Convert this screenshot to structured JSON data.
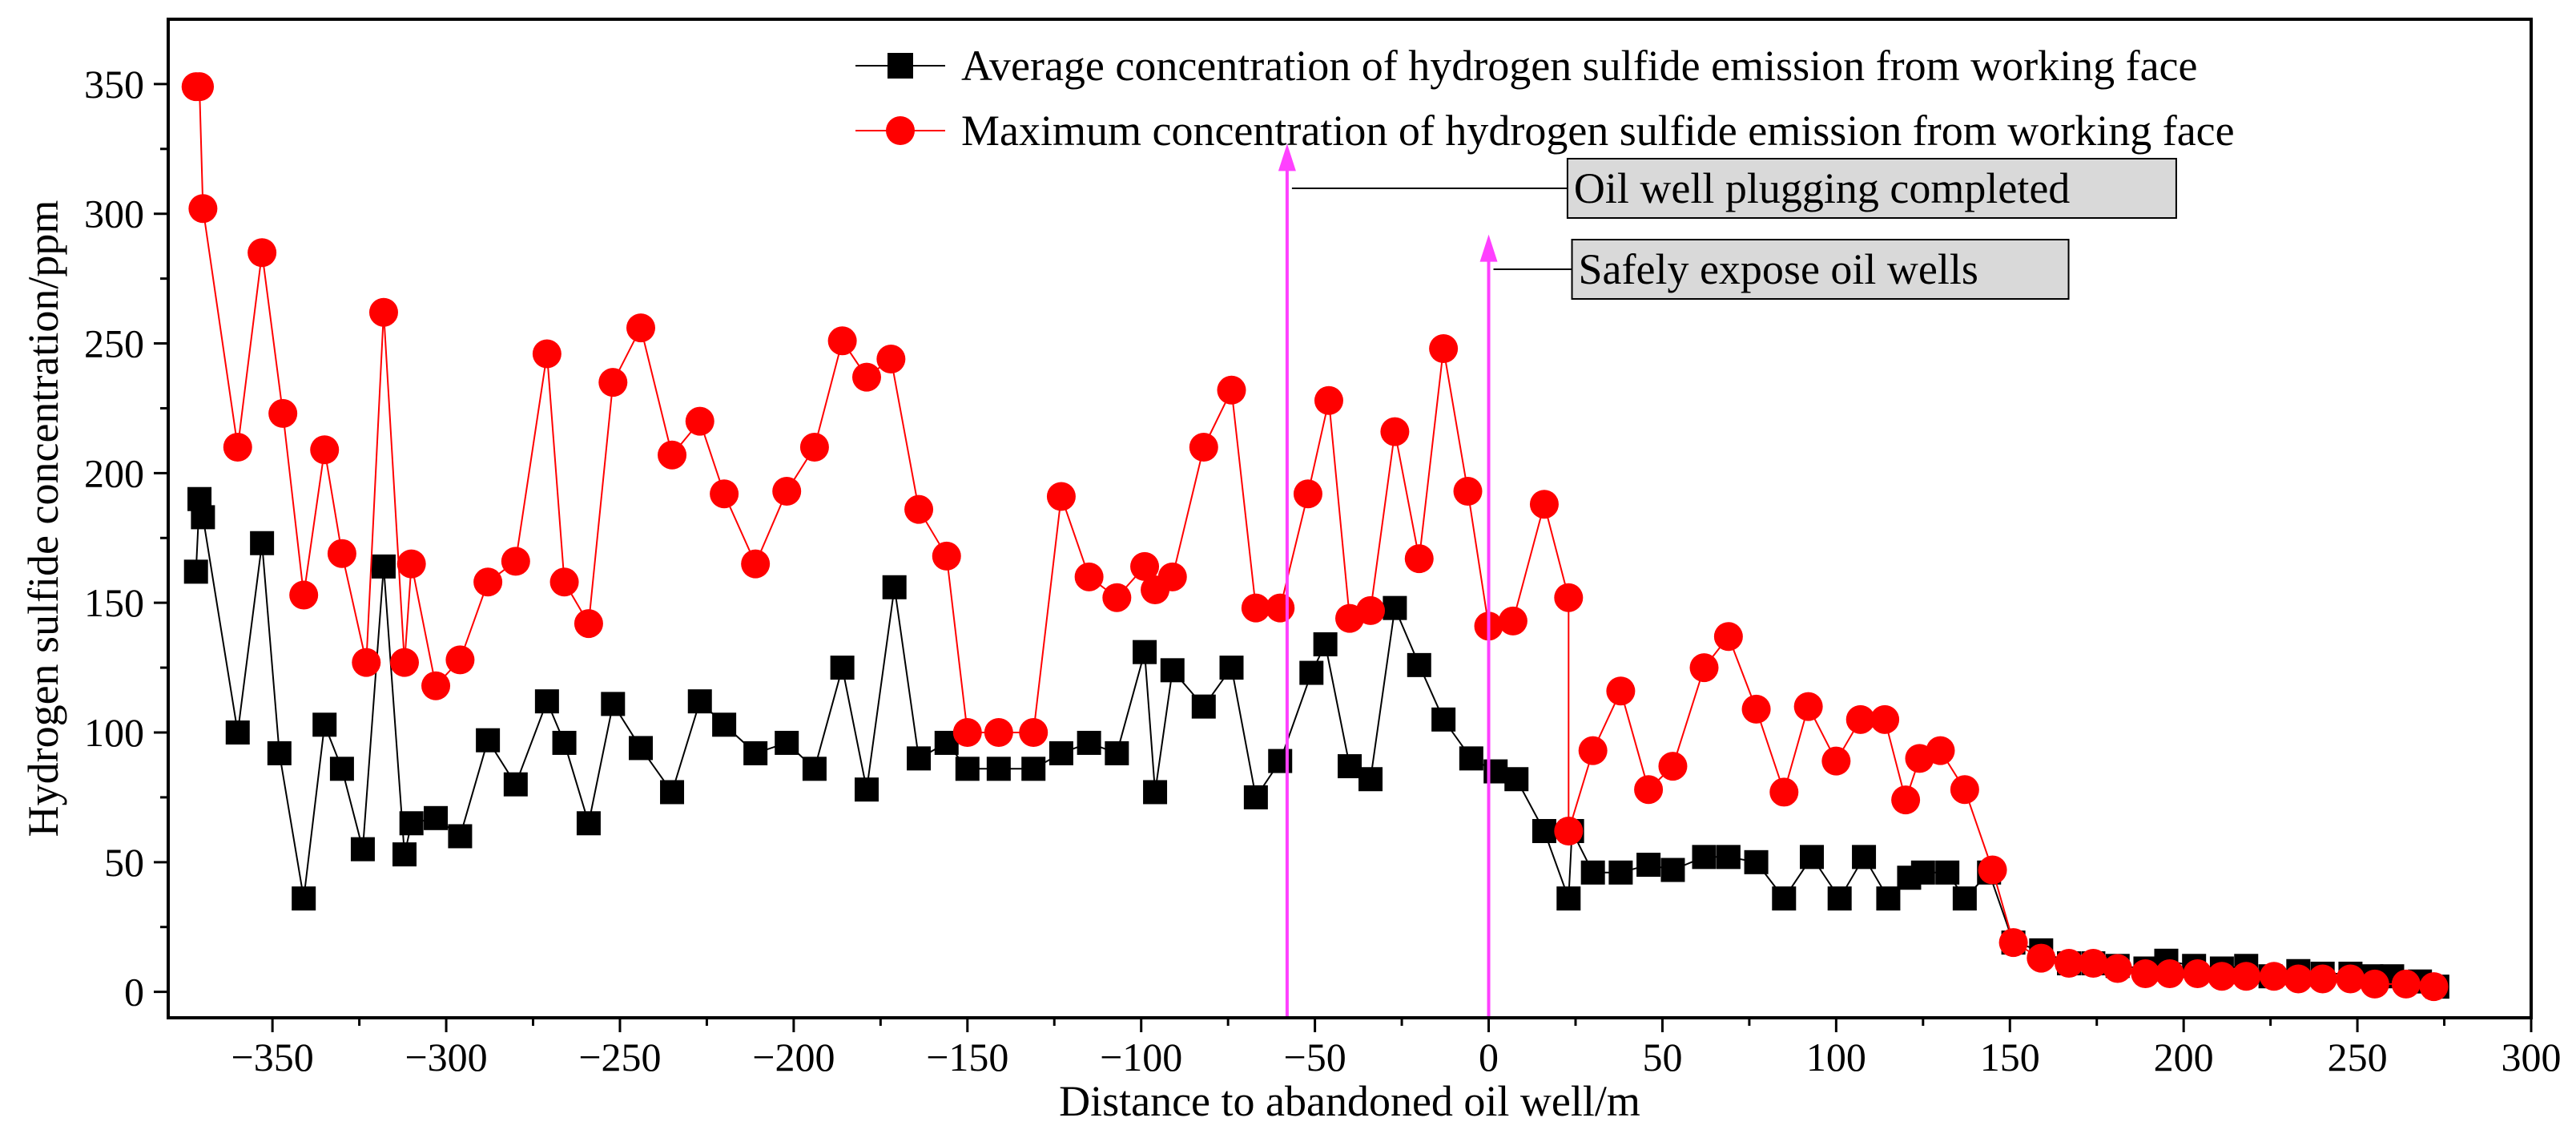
{
  "chart_data": {
    "type": "line",
    "xlabel": "Distance to abandoned oil well/m",
    "ylabel": "Hydrogen sulfide concentration/ppm",
    "xlim": [
      -380,
      300
    ],
    "ylim": [
      -10,
      375
    ],
    "x_ticks": [
      -350,
      -300,
      -250,
      -200,
      -150,
      -100,
      -50,
      0,
      50,
      100,
      150,
      200,
      250,
      300
    ],
    "y_ticks": [
      0,
      50,
      100,
      150,
      200,
      250,
      300,
      350
    ],
    "x_tick_labels": [
      "−350",
      "−300",
      "−250",
      "−200",
      "−150",
      "−100",
      "−50",
      "0",
      "50",
      "100",
      "150",
      "200",
      "250",
      "300"
    ],
    "y_tick_labels": [
      "0",
      "50",
      "100",
      "150",
      "200",
      "250",
      "300",
      "350"
    ],
    "grid": false,
    "legend_position": "top-right",
    "series": [
      {
        "name": "Average concentration of hydrogen sulfide emission from working face",
        "color": "#000000",
        "marker": "square",
        "points": [
          [
            -372,
            162
          ],
          [
            -371,
            190
          ],
          [
            -370,
            183
          ],
          [
            -360,
            100
          ],
          [
            -353,
            173
          ],
          [
            -348,
            92
          ],
          [
            -341,
            36
          ],
          [
            -335,
            103
          ],
          [
            -330,
            86
          ],
          [
            -324,
            55
          ],
          [
            -318,
            164
          ],
          [
            -312,
            53
          ],
          [
            -310,
            65
          ],
          [
            -303,
            67
          ],
          [
            -296,
            60
          ],
          [
            -288,
            97
          ],
          [
            -280,
            80
          ],
          [
            -271,
            112
          ],
          [
            -266,
            96
          ],
          [
            -259,
            65
          ],
          [
            -252,
            111
          ],
          [
            -244,
            94
          ],
          [
            -235,
            77
          ],
          [
            -227,
            112
          ],
          [
            -220,
            103
          ],
          [
            -211,
            92
          ],
          [
            -202,
            96
          ],
          [
            -194,
            86
          ],
          [
            -186,
            125
          ],
          [
            -179,
            78
          ],
          [
            -171,
            156
          ],
          [
            -164,
            90
          ],
          [
            -156,
            96
          ],
          [
            -150,
            86
          ],
          [
            -141,
            86
          ],
          [
            -131,
            86
          ],
          [
            -123,
            92
          ],
          [
            -115,
            96
          ],
          [
            -107,
            92
          ],
          [
            -99,
            131
          ],
          [
            -96,
            77
          ],
          [
            -91,
            124
          ],
          [
            -82,
            110
          ],
          [
            -74,
            125
          ],
          [
            -67,
            75
          ],
          [
            -60,
            89
          ],
          [
            -51,
            123
          ],
          [
            -47,
            134
          ],
          [
            -40,
            87
          ],
          [
            -34,
            82
          ],
          [
            -27,
            148
          ],
          [
            -20,
            126
          ],
          [
            -13,
            105
          ],
          [
            -5,
            90
          ],
          [
            2,
            85
          ],
          [
            8,
            82
          ],
          [
            16,
            62
          ],
          [
            23,
            36
          ],
          [
            24,
            62
          ],
          [
            30,
            46
          ],
          [
            38,
            46
          ],
          [
            46,
            49
          ],
          [
            53,
            47
          ],
          [
            62,
            52
          ],
          [
            69,
            52
          ],
          [
            77,
            50
          ],
          [
            85,
            36
          ],
          [
            93,
            52
          ],
          [
            101,
            36
          ],
          [
            108,
            52
          ],
          [
            115,
            36
          ],
          [
            121,
            44
          ],
          [
            125,
            46
          ],
          [
            132,
            46
          ],
          [
            137,
            36
          ],
          [
            144,
            46
          ],
          [
            151,
            19
          ],
          [
            159,
            16
          ],
          [
            167,
            11
          ],
          [
            174,
            11
          ],
          [
            181,
            10
          ],
          [
            189,
            9
          ],
          [
            195,
            12
          ],
          [
            203,
            10
          ],
          [
            211,
            9
          ],
          [
            218,
            10
          ],
          [
            225,
            6
          ],
          [
            233,
            8
          ],
          [
            240,
            7
          ],
          [
            248,
            7
          ],
          [
            254,
            6
          ],
          [
            260,
            6
          ],
          [
            268,
            4
          ],
          [
            273,
            2
          ]
        ]
      },
      {
        "name": "Maximum concentration of hydrogen sulfide emission from working face",
        "color": "#ff0000",
        "marker": "circle",
        "points": [
          [
            -372,
            349
          ],
          [
            -371,
            349
          ],
          [
            -370,
            302
          ],
          [
            -360,
            210
          ],
          [
            -353,
            285
          ],
          [
            -347,
            223
          ],
          [
            -341,
            153
          ],
          [
            -335,
            209
          ],
          [
            -330,
            169
          ],
          [
            -323,
            127
          ],
          [
            -318,
            262
          ],
          [
            -312,
            127
          ],
          [
            -310,
            165
          ],
          [
            -303,
            118
          ],
          [
            -296,
            128
          ],
          [
            -288,
            158
          ],
          [
            -280,
            166
          ],
          [
            -271,
            246
          ],
          [
            -266,
            158
          ],
          [
            -259,
            142
          ],
          [
            -252,
            235
          ],
          [
            -244,
            256
          ],
          [
            -235,
            207
          ],
          [
            -227,
            220
          ],
          [
            -220,
            192
          ],
          [
            -211,
            165
          ],
          [
            -202,
            193
          ],
          [
            -194,
            210
          ],
          [
            -186,
            251
          ],
          [
            -179,
            237
          ],
          [
            -172,
            244
          ],
          [
            -164,
            186
          ],
          [
            -156,
            168
          ],
          [
            -150,
            100
          ],
          [
            -141,
            100
          ],
          [
            -131,
            100
          ],
          [
            -123,
            191
          ],
          [
            -115,
            160
          ],
          [
            -107,
            152
          ],
          [
            -99,
            164
          ],
          [
            -96,
            155
          ],
          [
            -91,
            160
          ],
          [
            -82,
            210
          ],
          [
            -74,
            232
          ],
          [
            -67,
            148
          ],
          [
            -60,
            148
          ],
          [
            -52,
            192
          ],
          [
            -46,
            228
          ],
          [
            -40,
            144
          ],
          [
            -34,
            147
          ],
          [
            -27,
            216
          ],
          [
            -20,
            167
          ],
          [
            -13,
            248
          ],
          [
            -6,
            193
          ],
          [
            0,
            141
          ],
          [
            7,
            143
          ],
          [
            16,
            188
          ],
          [
            23,
            152
          ],
          [
            23,
            62
          ],
          [
            30,
            93
          ],
          [
            38,
            116
          ],
          [
            46,
            78
          ],
          [
            53,
            87
          ],
          [
            62,
            125
          ],
          [
            69,
            137
          ],
          [
            77,
            109
          ],
          [
            85,
            77
          ],
          [
            92,
            110
          ],
          [
            100,
            89
          ],
          [
            107,
            105
          ],
          [
            114,
            105
          ],
          [
            120,
            74
          ],
          [
            124,
            90
          ],
          [
            130,
            93
          ],
          [
            137,
            78
          ],
          [
            145,
            47
          ],
          [
            151,
            19
          ],
          [
            159,
            13
          ],
          [
            167,
            11
          ],
          [
            174,
            11
          ],
          [
            181,
            9
          ],
          [
            189,
            7
          ],
          [
            196,
            7
          ],
          [
            204,
            7
          ],
          [
            211,
            6
          ],
          [
            218,
            6
          ],
          [
            226,
            6
          ],
          [
            233,
            5
          ],
          [
            240,
            5
          ],
          [
            248,
            5
          ],
          [
            255,
            3
          ],
          [
            264,
            3
          ],
          [
            272,
            2
          ]
        ]
      }
    ],
    "annotations": [
      {
        "text": "Oil well plugging completed",
        "x": -58,
        "y": 327
      },
      {
        "text": "Safely expose oil wells",
        "x": 0,
        "y": 292
      }
    ]
  }
}
